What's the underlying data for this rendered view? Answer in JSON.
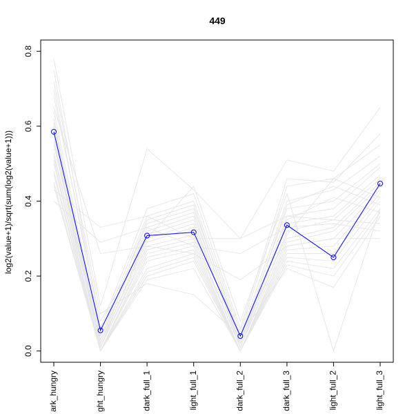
{
  "chart_data": {
    "type": "line",
    "title": "449",
    "xlabel": "",
    "ylabel": "log2(value+1)/sqrt(sum(log2(value+1)))",
    "ylim": [
      -0.03,
      0.83
    ],
    "yticks": [
      0.0,
      0.2,
      0.4,
      0.6,
      0.8
    ],
    "ytick_labels": [
      "0.0",
      "0.2",
      "0.4",
      "0.6",
      "0.8"
    ],
    "categories": [
      "dark_hungry",
      "light_hungry",
      "dark_full_1",
      "light_full_1",
      "dark_full_2",
      "dark_full_3",
      "light_full_2",
      "light_full_3"
    ],
    "category_labels_visible": [
      "ark_hungry",
      "ght_hungry",
      "dark_full_1",
      "light_full_1",
      "dark_full_2",
      "dark_full_3",
      "light_full_2",
      "light_full_3"
    ],
    "highlight": {
      "name": "449",
      "color": "#0000ff",
      "values": [
        0.585,
        0.055,
        0.308,
        0.317,
        0.04,
        0.336,
        0.25,
        0.447
      ]
    },
    "background_color": "#e6e6e6",
    "background_series": [
      [
        0.78,
        0.12,
        0.54,
        0.43,
        0.3,
        0.51,
        0.48,
        0.65
      ],
      [
        0.75,
        0.06,
        0.38,
        0.42,
        0.06,
        0.46,
        0.45,
        0.58
      ],
      [
        0.7,
        0.05,
        0.36,
        0.4,
        0.05,
        0.44,
        0.46,
        0.55
      ],
      [
        0.64,
        0.04,
        0.34,
        0.38,
        0.04,
        0.4,
        0.43,
        0.52
      ],
      [
        0.62,
        0.03,
        0.32,
        0.36,
        0.03,
        0.38,
        0.4,
        0.5
      ],
      [
        0.6,
        0.02,
        0.3,
        0.34,
        0.02,
        0.36,
        0.38,
        0.49
      ],
      [
        0.58,
        0.02,
        0.29,
        0.33,
        0.02,
        0.34,
        0.36,
        0.47
      ],
      [
        0.56,
        0.01,
        0.28,
        0.31,
        0.01,
        0.32,
        0.35,
        0.46
      ],
      [
        0.55,
        0.01,
        0.27,
        0.3,
        0.01,
        0.3,
        0.33,
        0.45
      ],
      [
        0.53,
        0.0,
        0.26,
        0.29,
        0.0,
        0.29,
        0.32,
        0.44
      ],
      [
        0.51,
        0.0,
        0.25,
        0.28,
        0.0,
        0.28,
        0.3,
        0.43
      ],
      [
        0.5,
        0.0,
        0.24,
        0.27,
        0.0,
        0.27,
        0.28,
        0.42
      ],
      [
        0.48,
        0.0,
        0.22,
        0.26,
        0.0,
        0.26,
        0.26,
        0.41
      ],
      [
        0.47,
        0.0,
        0.21,
        0.25,
        0.0,
        0.25,
        0.24,
        0.4
      ],
      [
        0.45,
        0.0,
        0.2,
        0.24,
        0.0,
        0.24,
        0.22,
        0.38
      ],
      [
        0.44,
        0.0,
        0.19,
        0.22,
        0.0,
        0.23,
        0.2,
        0.37
      ],
      [
        0.43,
        0.33,
        0.36,
        0.3,
        0.3,
        0.36,
        0.35,
        0.34
      ],
      [
        0.4,
        0.29,
        0.33,
        0.28,
        0.26,
        0.33,
        0.34,
        0.32
      ],
      [
        0.65,
        0.26,
        0.28,
        0.26,
        0.19,
        0.28,
        0.3,
        0.3
      ],
      [
        0.68,
        0.08,
        0.3,
        0.44,
        0.08,
        0.42,
        0.0,
        0.38
      ],
      [
        0.72,
        0.1,
        0.18,
        0.15,
        0.04,
        0.22,
        0.17,
        0.36
      ],
      [
        0.52,
        0.03,
        0.35,
        0.39,
        0.03,
        0.31,
        0.46,
        0.41
      ],
      [
        0.61,
        0.02,
        0.33,
        0.37,
        0.02,
        0.39,
        0.44,
        0.39
      ],
      [
        0.57,
        0.01,
        0.31,
        0.35,
        0.01,
        0.35,
        0.41,
        0.37
      ]
    ]
  }
}
